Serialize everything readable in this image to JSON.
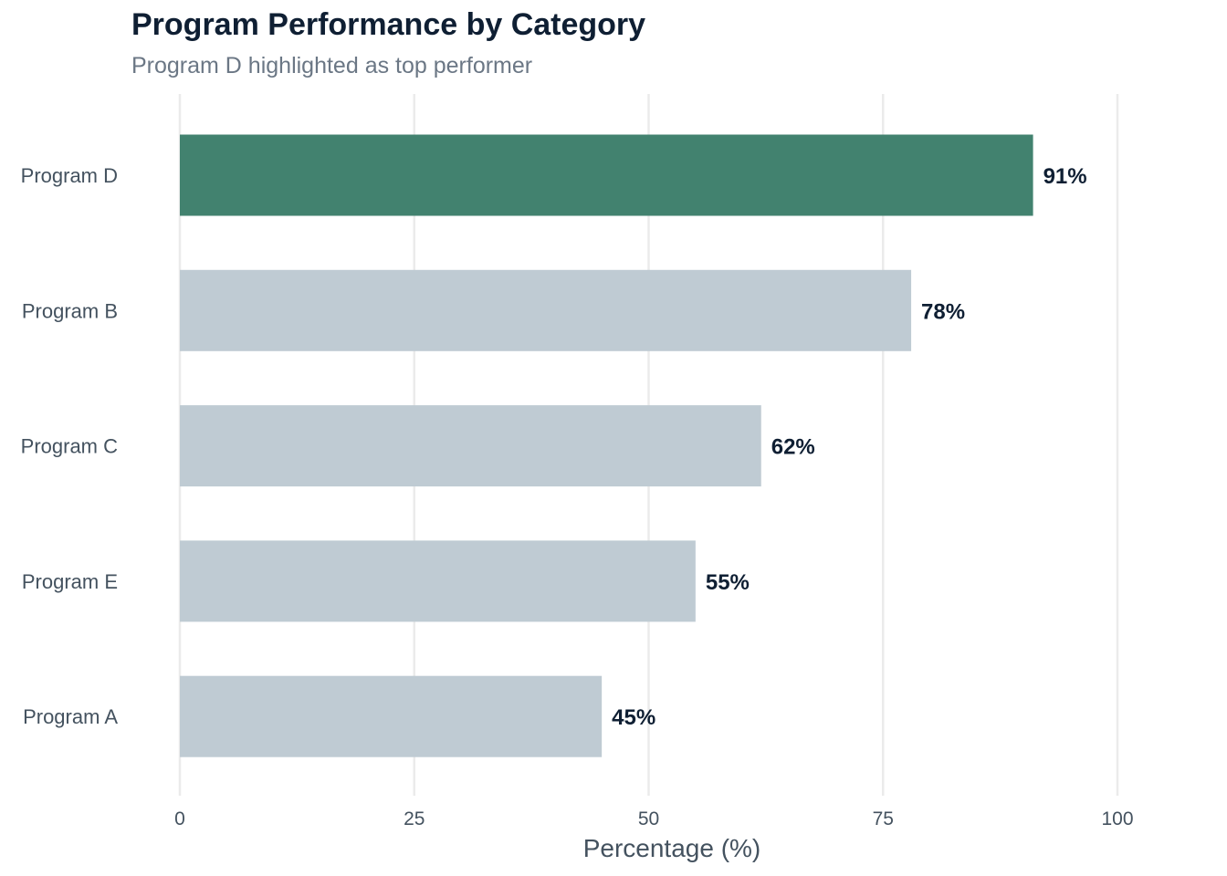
{
  "chart_data": {
    "type": "bar",
    "orientation": "horizontal",
    "title": "Program Performance by Category",
    "subtitle": "Program D highlighted as top performer",
    "xlabel": "Percentage (%)",
    "ylabel": "",
    "xlim": [
      0,
      100
    ],
    "x_ticks": [
      0,
      25,
      50,
      75,
      100
    ],
    "grid": "vertical",
    "legend": "none",
    "categories": [
      "Program D",
      "Program B",
      "Program C",
      "Program E",
      "Program A"
    ],
    "values": [
      91,
      78,
      62,
      55,
      45
    ],
    "value_labels": [
      "91%",
      "78%",
      "62%",
      "55%",
      "45%"
    ],
    "highlighted": "Program D",
    "colors": {
      "highlight": "#42826f",
      "default": "#bfcbd3"
    }
  }
}
